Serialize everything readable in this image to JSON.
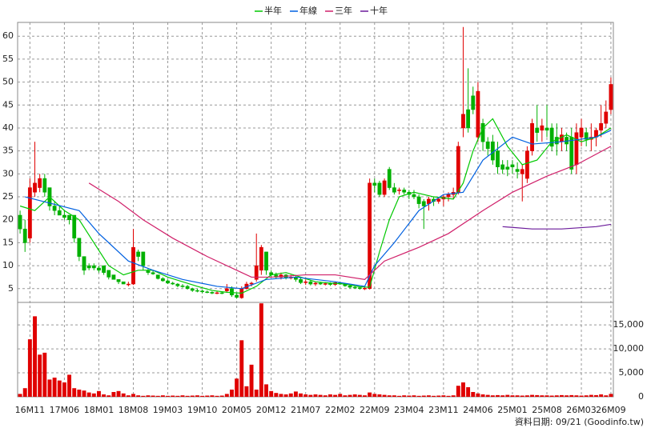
{
  "chart_data": [
    {
      "type": "candlestick",
      "legend": "top",
      "grid": true,
      "up_color": "#e00000",
      "down_color": "#00b000",
      "categories": [
        null,
        null,
        "16M11",
        null,
        null,
        null,
        null,
        null,
        null,
        "17M06",
        null,
        null,
        null,
        null,
        null,
        null,
        "18M01",
        null,
        null,
        null,
        null,
        null,
        null,
        "18M08",
        null,
        null,
        null,
        null,
        null,
        null,
        "19M03",
        null,
        null,
        null,
        null,
        null,
        null,
        "19M10",
        null,
        null,
        null,
        null,
        null,
        null,
        "20M05",
        null,
        null,
        null,
        null,
        null,
        null,
        "20M12",
        null,
        null,
        null,
        null,
        null,
        null,
        "21M07",
        null,
        null,
        null,
        null,
        null,
        null,
        "22M02",
        null,
        null,
        null,
        null,
        null,
        null,
        "22M09",
        null,
        null,
        null,
        null,
        null,
        null,
        "23M04",
        null,
        null,
        null,
        null,
        null,
        null,
        "23M11",
        null,
        null,
        null,
        null,
        null,
        null,
        "24M06",
        null,
        null,
        null,
        null,
        null,
        null,
        "25M01",
        null,
        null,
        null,
        null,
        null,
        null,
        "25M08",
        null,
        null,
        null,
        null,
        null,
        null,
        "26M03",
        null,
        null,
        null,
        null,
        null,
        "26M09"
      ],
      "open": [
        21,
        18,
        16,
        26,
        27,
        29,
        27,
        23,
        22,
        21,
        21,
        21,
        16,
        12,
        10,
        10,
        9.5,
        10,
        9,
        8,
        7,
        6.5,
        6,
        6,
        13,
        13,
        9,
        8.5,
        8,
        7.2,
        6.7,
        6.2,
        6,
        5.6,
        5.5,
        5,
        4.6,
        4.5,
        4.3,
        4.2,
        4,
        4.1,
        4.5,
        5,
        3.6,
        3,
        5,
        6,
        7,
        9,
        13,
        8.5,
        8,
        7.5,
        8,
        7.3,
        7.5,
        7,
        6.3,
        6.5,
        6,
        6.2,
        6,
        6.1,
        5.9,
        6.3,
        6,
        5.6,
        5.3,
        5.2,
        5,
        5,
        28,
        28,
        25.5,
        31,
        27,
        26.5,
        26.5,
        26,
        25.5,
        25,
        24,
        23.5,
        24.5,
        24,
        24.5,
        25,
        25.5,
        26,
        40,
        44,
        47,
        38,
        41,
        37,
        37,
        35,
        32,
        31.5,
        32,
        31,
        30,
        29,
        35,
        40,
        39.5,
        40,
        40,
        38,
        37,
        38,
        38,
        32,
        38,
        39,
        37.5,
        38,
        39.5,
        41,
        44
      ],
      "high": [
        22,
        20,
        29,
        37,
        30,
        30,
        27,
        24,
        23,
        22,
        21,
        21,
        16,
        12,
        10.5,
        10.5,
        10,
        10,
        9,
        8,
        7,
        6.5,
        6.5,
        18,
        13.5,
        13,
        9.5,
        9,
        8,
        7.5,
        7,
        6.5,
        6.2,
        6,
        5.8,
        5.2,
        5,
        4.8,
        4.6,
        4.4,
        4.5,
        4.4,
        6,
        5.5,
        4,
        5.5,
        6.5,
        6.5,
        17,
        14.5,
        13,
        9,
        8.5,
        8.5,
        8.2,
        8,
        8,
        7.5,
        7,
        6.8,
        6.5,
        6.5,
        6.4,
        6.4,
        6.5,
        6.5,
        6.2,
        5.8,
        5.6,
        5.5,
        5.4,
        29,
        29,
        28.5,
        29,
        31.5,
        28,
        27,
        27,
        26.5,
        26.5,
        25.5,
        24.5,
        25,
        25,
        25,
        25.5,
        26,
        27,
        37,
        62,
        53,
        49,
        50,
        42,
        38,
        38.5,
        37,
        33,
        33,
        33,
        32.5,
        32,
        36,
        42,
        45,
        42,
        45,
        41,
        41,
        40,
        39,
        40,
        41,
        42,
        40,
        41,
        40,
        45,
        46,
        51
      ],
      "low": [
        17,
        13,
        15,
        25,
        26,
        25,
        22,
        21,
        21,
        20,
        19,
        15,
        11,
        8,
        9,
        9,
        8.5,
        8,
        7,
        7,
        6,
        6,
        5.5,
        5.8,
        11,
        9,
        8,
        8,
        7,
        6.5,
        6,
        5.8,
        5.3,
        5.2,
        4.8,
        4.3,
        4.2,
        4,
        4,
        3.8,
        3.8,
        3.8,
        4.2,
        3.2,
        2.8,
        2.8,
        4.8,
        5.5,
        6.5,
        8,
        8,
        7.5,
        7.2,
        7,
        7,
        7,
        6.5,
        6,
        5.8,
        5.7,
        5.6,
        5.8,
        5.7,
        5.6,
        5.6,
        5.8,
        5.4,
        5,
        5,
        4.8,
        4.7,
        4.8,
        26,
        25,
        25,
        26.5,
        25.5,
        25.5,
        25.5,
        24.5,
        24.5,
        22.5,
        18,
        22,
        23,
        23.5,
        23,
        24,
        24.5,
        25.5,
        38,
        39,
        43,
        37,
        35,
        34,
        32,
        30,
        30,
        29.5,
        30,
        29,
        24,
        28,
        34,
        37,
        37,
        38,
        35,
        34,
        35,
        35,
        30,
        30,
        36,
        36,
        35,
        36,
        38,
        40,
        43
      ],
      "close": [
        18,
        15,
        27,
        28,
        29,
        26,
        23,
        22,
        21,
        20.5,
        20,
        16,
        12,
        9,
        9.5,
        9.5,
        9,
        8.5,
        7.5,
        7,
        6.5,
        6,
        6,
        14,
        12,
        10,
        8.5,
        8.2,
        7.2,
        6.7,
        6.2,
        6,
        5.6,
        5.5,
        5,
        4.6,
        4.5,
        4.3,
        4.2,
        4,
        4.1,
        4,
        5,
        3.6,
        3.1,
        5,
        6,
        6.2,
        10,
        14,
        9,
        8,
        7.5,
        8,
        7.3,
        7.5,
        7,
        6.3,
        6.5,
        6,
        6.2,
        6,
        6.1,
        5.9,
        6.3,
        6,
        5.6,
        5.3,
        5.2,
        5,
        5.1,
        28,
        27.5,
        25.5,
        28.5,
        27,
        26,
        26.5,
        26,
        25.5,
        25,
        23.5,
        23,
        24.5,
        24,
        24.5,
        25,
        25.5,
        26,
        36,
        43,
        40,
        44,
        48,
        37,
        35.5,
        33,
        31.5,
        31,
        31,
        31.5,
        30.5,
        31,
        35,
        41,
        39,
        40.5,
        39.5,
        36,
        36.5,
        38.5,
        36.5,
        31,
        39,
        40,
        37.5,
        38,
        39.5,
        41,
        43.5,
        49.5
      ],
      "series": [
        {
          "name": "半年",
          "color": "#00c800",
          "x": [
            0,
            3,
            6,
            9,
            12,
            15,
            18,
            21,
            24,
            27,
            30,
            33,
            36,
            39,
            42,
            45,
            48,
            51,
            54,
            57,
            60,
            63,
            66,
            69,
            71,
            73,
            75,
            77,
            80,
            84,
            88,
            90,
            92,
            94,
            96,
            99,
            102,
            105,
            108,
            111,
            114,
            117,
            120
          ],
          "values": [
            23,
            22,
            25,
            22,
            20,
            15,
            10,
            8,
            9,
            9,
            7.5,
            6.5,
            5.5,
            4.6,
            4.2,
            4,
            5.5,
            8,
            8.5,
            7.5,
            6.5,
            6.2,
            6,
            5.4,
            5.3,
            13,
            20,
            25,
            26,
            25,
            24.5,
            28,
            35,
            40,
            42,
            36,
            32,
            33,
            37,
            38.5,
            37,
            38,
            40
          ]
        },
        {
          "name": "年線",
          "color": "#0060e0",
          "x": [
            1,
            12,
            16,
            22,
            27,
            33,
            40,
            45,
            50,
            56,
            64,
            70,
            72,
            76,
            81,
            86,
            90,
            94,
            100,
            104,
            110,
            117,
            120
          ],
          "values": [
            25,
            22,
            17,
            11,
            9,
            7,
            5.5,
            5,
            7,
            7.5,
            6.5,
            5.5,
            10,
            15,
            22,
            25.5,
            26,
            33,
            38,
            36.5,
            37,
            38,
            39.5
          ]
        },
        {
          "name": "三年",
          "color": "#d0206a",
          "x": [
            14,
            20,
            25,
            31,
            38,
            45,
            47,
            51,
            58,
            64,
            70,
            74,
            81,
            87,
            94,
            100,
            107,
            113,
            120
          ],
          "values": [
            28,
            24,
            20,
            16,
            12,
            8.5,
            7.5,
            7.5,
            8,
            8,
            7,
            11,
            14,
            17,
            22,
            26,
            29.5,
            32,
            36
          ]
        },
        {
          "name": "十年",
          "color": "#6a1a9a",
          "x": [
            98,
            104,
            110,
            117,
            120
          ],
          "values": [
            18.5,
            18,
            18,
            18.5,
            19
          ]
        }
      ],
      "ylim": [
        2,
        63
      ],
      "yticks": [
        5,
        10,
        15,
        20,
        25,
        30,
        35,
        40,
        45,
        50,
        55,
        60
      ]
    },
    {
      "type": "bar",
      "color": "#e00000",
      "grid": true,
      "values": [
        600,
        1800,
        12000,
        16800,
        8800,
        9200,
        3600,
        4000,
        3400,
        3000,
        4600,
        1800,
        1500,
        1300,
        900,
        700,
        1200,
        500,
        300,
        1000,
        1200,
        700,
        300,
        600,
        300,
        200,
        300,
        250,
        200,
        300,
        200,
        250,
        200,
        300,
        200,
        250,
        300,
        200,
        250,
        300,
        200,
        250,
        600,
        1500,
        3800,
        11800,
        2200,
        6700,
        1500,
        19500,
        2600,
        1200,
        800,
        600,
        500,
        700,
        1100,
        700,
        500,
        400,
        500,
        400,
        300,
        500,
        400,
        600,
        300,
        400,
        500,
        400,
        300,
        900,
        600,
        500,
        400,
        300,
        300,
        200,
        300,
        250,
        300,
        200,
        250,
        300,
        200,
        250,
        300,
        200,
        300,
        2300,
        3000,
        2000,
        1000,
        700,
        500,
        400,
        300,
        350,
        300,
        400,
        300,
        300,
        250,
        300,
        400,
        350,
        300,
        300,
        250,
        300,
        350,
        300,
        350,
        300,
        250,
        300,
        400,
        350,
        500,
        300,
        600
      ],
      "ylim": [
        0,
        19700
      ],
      "yticks": [
        0,
        {
          "value": 5000,
          "label": "5,000"
        },
        {
          "value": 10000,
          "label": "10,000"
        },
        {
          "value": 15000,
          "label": "15,000"
        }
      ]
    }
  ],
  "footer": "資料日期: 09/21 (Goodinfo.tw)"
}
